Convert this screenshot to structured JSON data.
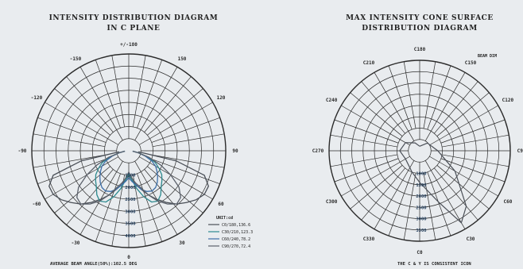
{
  "colors": {
    "background": "#e9ecef",
    "grid": "#2b2b2b",
    "curve_dark": "#4a4f57",
    "curve_teal": "#2d8a8f",
    "curve_blue": "#3c6ea8",
    "curve_grey": "#5b616b"
  },
  "chart_data": [
    {
      "type": "polar",
      "title": "INTENSITY DISTRIBUTION DIAGRAM",
      "subtitle": "IN C PLANE",
      "angle_labels": [
        "+/-180",
        "150",
        "120",
        "90",
        "60",
        "30",
        "0",
        "-30",
        "-60",
        "-90",
        "-120",
        "-150"
      ],
      "radial_labels": [
        "1500",
        "2000",
        "2500",
        "3000",
        "3500",
        "4000"
      ],
      "legend_title": "UNIT:cd",
      "legend": [
        "C0/180,136.6",
        "C30/210,123.3",
        "C60/240,78.2",
        "C90/270,72.4"
      ],
      "footer": "AVERAGE BEAM ANGLE(50%):102.5 DEG",
      "series": [
        {
          "name": "C0/180,136.6",
          "color": "curve_dark",
          "r": [
            0.26,
            0.3,
            0.36,
            0.42,
            0.5,
            0.58,
            0.66,
            0.74,
            0.8,
            0.86,
            0.9,
            0.9,
            0.82,
            0.5,
            0.1
          ]
        },
        {
          "name": "C30/210,123.3",
          "color": "curve_teal",
          "r": [
            0.24,
            0.3,
            0.4,
            0.5,
            0.58,
            0.6,
            0.56,
            0.5,
            0.46,
            0.42,
            0.36,
            0.3,
            0.2,
            0.1,
            0.04
          ]
        },
        {
          "name": "C60/240,78.2",
          "color": "curve_blue",
          "r": [
            0.28,
            0.32,
            0.36,
            0.42,
            0.46,
            0.48,
            0.47,
            0.44,
            0.4,
            0.36,
            0.32,
            0.26,
            0.18,
            0.1,
            0.04
          ]
        },
        {
          "name": "C90/270,72.4",
          "color": "curve_grey",
          "r": [
            0.22,
            0.28,
            0.34,
            0.4,
            0.5,
            0.6,
            0.68,
            0.74,
            0.72,
            0.64,
            0.5,
            0.36,
            0.22,
            0.1,
            0.04
          ]
        }
      ]
    },
    {
      "type": "polar",
      "title": "MAX INTENSITY CONE SURFACE",
      "subtitle": "DISTRIBUTION DIAGRAM",
      "angle_labels": [
        "C180",
        "C150",
        "C120",
        "C90",
        "C60",
        "C30",
        "C0",
        "C330",
        "C300",
        "C270",
        "C240",
        "C210"
      ],
      "radial_labels": [
        "1000",
        "1500",
        "2000",
        "2500",
        "3000",
        "3500"
      ],
      "corner_label": "BEAM DIM",
      "footer": "THE C & Y IS CONSISTENT ICON",
      "series": [
        {
          "name": "",
          "color": "curve_dark",
          "points": [
            [
              0,
              0.05
            ],
            [
              45,
              0.12
            ],
            [
              90,
              0.2
            ],
            [
              120,
              0.45
            ],
            [
              140,
              0.8
            ],
            [
              150,
              0.92
            ],
            [
              160,
              0.6
            ],
            [
              180,
              0.35
            ],
            [
              200,
              0.25
            ],
            [
              240,
              0.18
            ],
            [
              270,
              0.22
            ],
            [
              300,
              0.18
            ],
            [
              330,
              0.1
            ],
            [
              360,
              0.05
            ]
          ]
        }
      ]
    }
  ]
}
